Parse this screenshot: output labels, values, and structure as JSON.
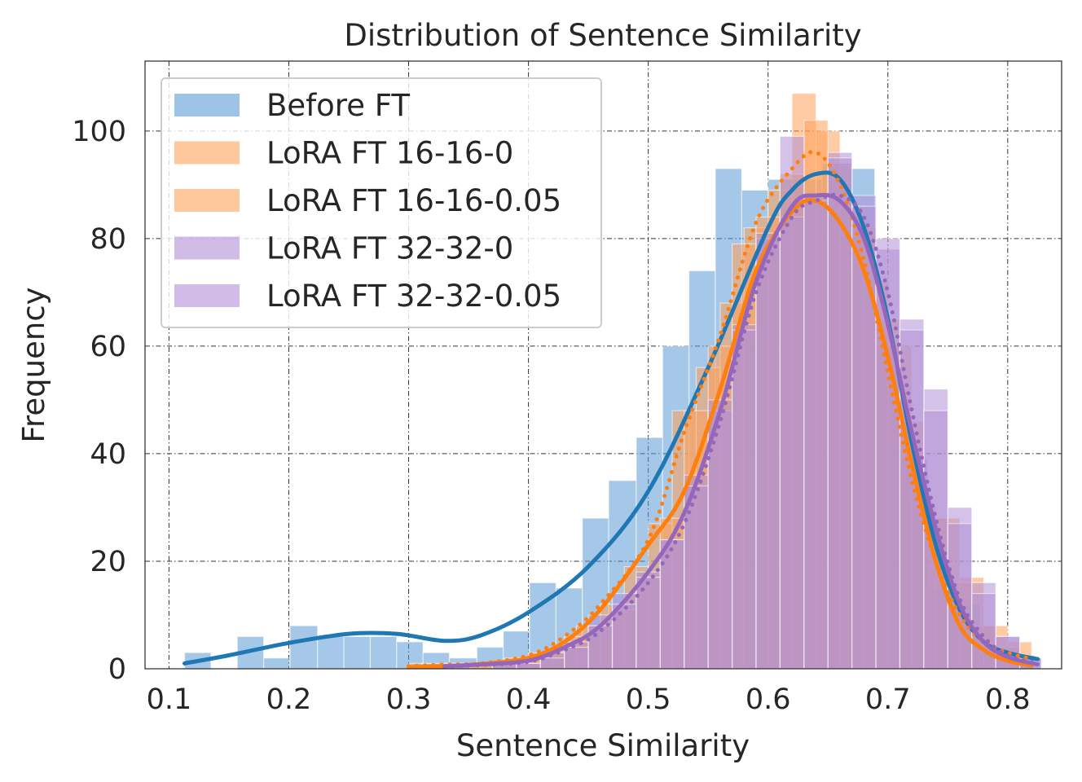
{
  "chart_data": {
    "type": "bar",
    "subtype": "histogram-with-kde",
    "title": "Distribution of Sentence Similarity",
    "xlabel": "Sentence Similarity",
    "ylabel": "Frequency",
    "xlim": [
      0.08,
      0.845
    ],
    "ylim": [
      0,
      113
    ],
    "xticks": [
      0.1,
      0.2,
      0.3,
      0.4,
      0.5,
      0.6,
      0.7,
      0.8
    ],
    "xtick_labels": [
      "0.1",
      "0.2",
      "0.3",
      "0.4",
      "0.5",
      "0.6",
      "0.7",
      "0.8"
    ],
    "yticks": [
      0,
      20,
      40,
      60,
      80,
      100
    ],
    "ytick_labels": [
      "0",
      "20",
      "40",
      "60",
      "80",
      "100"
    ],
    "grid": true,
    "legend": {
      "position": "upper-left",
      "entries": [
        "Before FT",
        "LoRA FT 16-16-0",
        "LoRA FT 16-16-0.05",
        "LoRA FT 32-32-0",
        "LoRA FT 32-32-0.05"
      ]
    },
    "series": [
      {
        "name": "Before FT",
        "color": "#1f77b4",
        "bar_color": "#5b9bd5",
        "kde_style": "solid",
        "bin_edges": [
          0.113,
          0.135,
          0.157,
          0.179,
          0.201,
          0.224,
          0.246,
          0.268,
          0.29,
          0.312,
          0.334,
          0.357,
          0.379,
          0.401,
          0.423,
          0.445,
          0.467,
          0.49,
          0.512,
          0.534,
          0.556,
          0.578,
          0.6,
          0.622,
          0.645,
          0.667,
          0.689,
          0.711,
          0.733,
          0.755,
          0.777,
          0.8,
          0.822
        ],
        "counts": [
          3,
          0,
          6,
          2,
          8,
          6,
          6,
          6,
          5,
          3,
          2,
          4,
          7,
          16,
          15,
          28,
          35,
          43,
          60,
          74,
          93,
          89,
          91,
          91,
          94,
          93,
          60,
          39,
          15,
          12,
          3,
          1
        ],
        "kde": [
          [
            0.113,
            1.0
          ],
          [
            0.15,
            2.5
          ],
          [
            0.2,
            4.8
          ],
          [
            0.25,
            6.5
          ],
          [
            0.29,
            6.5
          ],
          [
            0.33,
            5.2
          ],
          [
            0.36,
            6.2
          ],
          [
            0.4,
            10.5
          ],
          [
            0.45,
            19
          ],
          [
            0.5,
            33
          ],
          [
            0.55,
            56
          ],
          [
            0.6,
            82
          ],
          [
            0.62,
            89
          ],
          [
            0.64,
            92
          ],
          [
            0.66,
            91
          ],
          [
            0.68,
            82
          ],
          [
            0.7,
            65
          ],
          [
            0.72,
            42
          ],
          [
            0.74,
            23
          ],
          [
            0.76,
            11
          ],
          [
            0.78,
            5
          ],
          [
            0.8,
            3
          ],
          [
            0.825,
            1.8
          ]
        ]
      },
      {
        "name": "LoRA FT 16-16-0",
        "color": "#ff7f0e",
        "bar_color": "#ffa15a",
        "kde_style": "solid",
        "bin_edges": [
          0.301,
          0.321,
          0.341,
          0.36,
          0.38,
          0.4,
          0.42,
          0.44,
          0.46,
          0.48,
          0.5,
          0.52,
          0.54,
          0.56,
          0.58,
          0.6,
          0.62,
          0.64,
          0.66,
          0.68,
          0.7,
          0.72,
          0.74,
          0.76,
          0.78,
          0.8,
          0.82
        ],
        "counts": [
          1,
          0,
          1,
          1,
          2,
          3,
          4,
          8,
          12,
          19,
          27,
          48,
          56,
          68,
          82,
          89,
          107,
          100,
          86,
          72,
          60,
          30,
          28,
          17,
          8,
          5
        ],
        "kde": [
          [
            0.3,
            0.3
          ],
          [
            0.33,
            0.5
          ],
          [
            0.36,
            0.9
          ],
          [
            0.4,
            2
          ],
          [
            0.43,
            5
          ],
          [
            0.46,
            11
          ],
          [
            0.5,
            23
          ],
          [
            0.53,
            33
          ],
          [
            0.56,
            52
          ],
          [
            0.59,
            74
          ],
          [
            0.62,
            85
          ],
          [
            0.64,
            87
          ],
          [
            0.66,
            83
          ],
          [
            0.68,
            74
          ],
          [
            0.7,
            58
          ],
          [
            0.72,
            38
          ],
          [
            0.74,
            20
          ],
          [
            0.76,
            8
          ],
          [
            0.78,
            3.5
          ],
          [
            0.8,
            1.5
          ],
          [
            0.82,
            0.6
          ]
        ]
      },
      {
        "name": "LoRA FT 16-16-0.05",
        "color": "#ff7f0e",
        "bar_color": "#ffa15a",
        "kde_style": "dotted",
        "bin_edges": [
          0.311,
          0.331,
          0.351,
          0.37,
          0.39,
          0.41,
          0.43,
          0.45,
          0.47,
          0.49,
          0.51,
          0.53,
          0.55,
          0.57,
          0.59,
          0.61,
          0.63,
          0.65,
          0.67,
          0.69,
          0.71,
          0.73,
          0.75,
          0.77,
          0.79,
          0.81
        ],
        "counts": [
          1,
          1,
          1,
          1,
          2,
          3,
          6,
          8,
          11,
          17,
          28,
          48,
          60,
          79,
          84,
          92,
          102,
          94,
          82,
          65,
          46,
          28,
          16,
          8,
          4
        ],
        "kde": [
          [
            0.3,
            0.5
          ],
          [
            0.33,
            0.8
          ],
          [
            0.36,
            1
          ],
          [
            0.4,
            2.5
          ],
          [
            0.43,
            6
          ],
          [
            0.46,
            12
          ],
          [
            0.5,
            24
          ],
          [
            0.53,
            44
          ],
          [
            0.56,
            62
          ],
          [
            0.59,
            83
          ],
          [
            0.62,
            93
          ],
          [
            0.64,
            96
          ],
          [
            0.66,
            90
          ],
          [
            0.68,
            76
          ],
          [
            0.7,
            55
          ],
          [
            0.72,
            35
          ],
          [
            0.74,
            20
          ],
          [
            0.76,
            10
          ],
          [
            0.78,
            5
          ],
          [
            0.8,
            3
          ],
          [
            0.82,
            1.8
          ]
        ]
      },
      {
        "name": "LoRA FT 32-32-0",
        "color": "#9467bd",
        "bar_color": "#b18fd6",
        "kde_style": "solid",
        "bin_edges": [
          0.331,
          0.351,
          0.37,
          0.39,
          0.41,
          0.43,
          0.45,
          0.47,
          0.49,
          0.51,
          0.53,
          0.55,
          0.57,
          0.59,
          0.61,
          0.63,
          0.65,
          0.67,
          0.69,
          0.71,
          0.73,
          0.75,
          0.77,
          0.79,
          0.81,
          0.828
        ],
        "counts": [
          1,
          0,
          1,
          1,
          3,
          5,
          10,
          14,
          18,
          24,
          36,
          48,
          64,
          80,
          84,
          87,
          96,
          88,
          78,
          65,
          52,
          30,
          16,
          6,
          2
        ],
        "kde": [
          [
            0.33,
            0.5
          ],
          [
            0.36,
            0.8
          ],
          [
            0.4,
            1.5
          ],
          [
            0.43,
            4
          ],
          [
            0.46,
            8
          ],
          [
            0.5,
            18
          ],
          [
            0.53,
            29
          ],
          [
            0.56,
            48
          ],
          [
            0.59,
            72
          ],
          [
            0.62,
            86
          ],
          [
            0.64,
            88
          ],
          [
            0.66,
            87
          ],
          [
            0.68,
            80
          ],
          [
            0.7,
            64
          ],
          [
            0.72,
            44
          ],
          [
            0.74,
            26
          ],
          [
            0.76,
            12
          ],
          [
            0.78,
            5
          ],
          [
            0.8,
            2.2
          ],
          [
            0.825,
            0.8
          ]
        ]
      },
      {
        "name": "LoRA FT 32-32-0.05",
        "color": "#9467bd",
        "bar_color": "#b18fd6",
        "kde_style": "dotted",
        "bin_edges": [
          0.331,
          0.351,
          0.37,
          0.39,
          0.41,
          0.43,
          0.45,
          0.47,
          0.49,
          0.51,
          0.53,
          0.55,
          0.57,
          0.59,
          0.61,
          0.63,
          0.65,
          0.67,
          0.69,
          0.71,
          0.73,
          0.75,
          0.77,
          0.79,
          0.81,
          0.828
        ],
        "counts": [
          1,
          0,
          1,
          1,
          2,
          4,
          8,
          12,
          17,
          24,
          34,
          50,
          63,
          81,
          99,
          88,
          95,
          86,
          80,
          63,
          48,
          27,
          14,
          6,
          2
        ],
        "kde": [
          [
            0.33,
            0.4
          ],
          [
            0.36,
            0.7
          ],
          [
            0.4,
            1.3
          ],
          [
            0.43,
            3.5
          ],
          [
            0.46,
            7
          ],
          [
            0.5,
            16
          ],
          [
            0.53,
            27
          ],
          [
            0.56,
            46
          ],
          [
            0.59,
            70
          ],
          [
            0.62,
            84
          ],
          [
            0.64,
            87
          ],
          [
            0.66,
            88
          ],
          [
            0.68,
            84
          ],
          [
            0.7,
            70
          ],
          [
            0.72,
            48
          ],
          [
            0.74,
            28
          ],
          [
            0.76,
            13
          ],
          [
            0.78,
            6
          ],
          [
            0.8,
            2.5
          ],
          [
            0.825,
            1
          ]
        ]
      }
    ]
  }
}
